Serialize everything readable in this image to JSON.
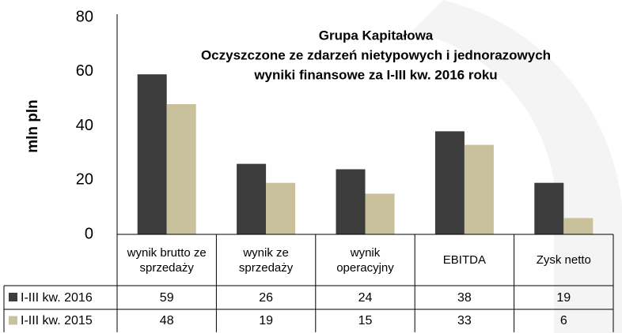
{
  "chart_data": {
    "type": "bar",
    "title": [
      "Grupa Kapitałowa",
      "Oczyszczone ze zdarzeń nietypowych i jednorazowych",
      "wyniki finansowe za I-III kw. 2016 roku"
    ],
    "ylabel": "mln pln",
    "categories": [
      "wynik brutto ze sprzedaży",
      "wynik ze sprzedaży",
      "wynik operacyjny",
      "EBITDA",
      "Zysk netto"
    ],
    "series": [
      {
        "name": "I-III kw. 2016",
        "color": "#3c3c3c",
        "values": [
          59,
          26,
          24,
          38,
          19
        ]
      },
      {
        "name": "I-III kw. 2015",
        "color": "#c9c09c",
        "values": [
          48,
          19,
          15,
          33,
          6
        ]
      }
    ],
    "ylim": [
      0,
      80
    ],
    "yticks": [
      0,
      20,
      40,
      60,
      80
    ],
    "grid": false,
    "legend": "table"
  }
}
